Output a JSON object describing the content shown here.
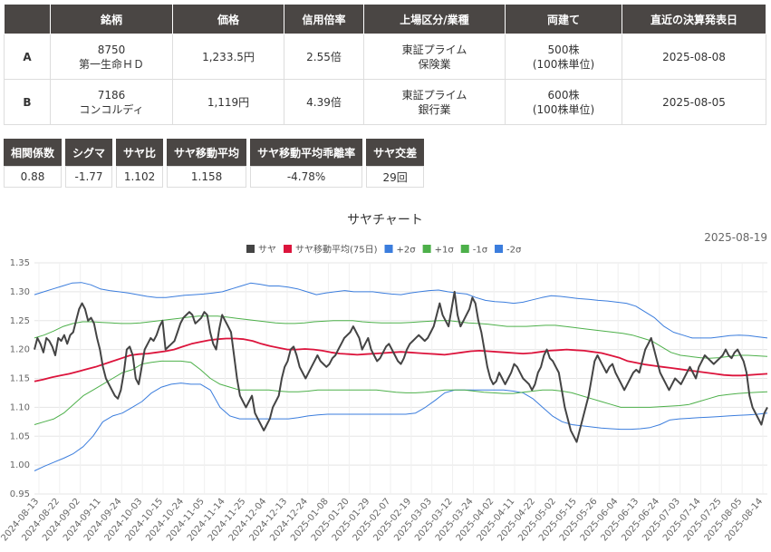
{
  "pair_table": {
    "headers": [
      "",
      "銘柄",
      "価格",
      "信用倍率",
      "上場区分/業種",
      "両建て",
      "直近の決算発表日"
    ],
    "rows": [
      {
        "id": "A",
        "code": "8750",
        "name": "第一生命ＨＤ",
        "price": "1,233.5円",
        "ratio": "2.55倍",
        "market": "東証プライム",
        "industry": "保険業",
        "both": "500株",
        "unit": "(100株単位)",
        "date": "2025-08-08"
      },
      {
        "id": "B",
        "code": "7186",
        "name": "コンコルディ",
        "price": "1,119円",
        "ratio": "4.39倍",
        "market": "東証プライム",
        "industry": "銀行業",
        "both": "600株",
        "unit": "(100株単位)",
        "date": "2025-08-05"
      }
    ]
  },
  "stats": {
    "headers": [
      "相関係数",
      "シグマ",
      "サヤ比",
      "サヤ移動平均",
      "サヤ移動平均乖離率",
      "サヤ交差"
    ],
    "values": [
      "0.88",
      "-1.77",
      "1.102",
      "1.158",
      "-4.78%",
      "29回"
    ]
  },
  "chart_data": {
    "type": "line",
    "title": "サヤチャート",
    "date_label": "2025-08-19",
    "ylim": [
      0.95,
      1.35
    ],
    "yticks": [
      "0.95",
      "1.00",
      "1.05",
      "1.10",
      "1.15",
      "1.20",
      "1.25",
      "1.30",
      "1.35"
    ],
    "xticks": [
      "2024-08-13",
      "2024-08-22",
      "2024-09-02",
      "2024-09-11",
      "2024-09-24",
      "2024-10-03",
      "2024-10-15",
      "2024-10-24",
      "2024-11-05",
      "2024-11-14",
      "2024-11-25",
      "2024-12-04",
      "2024-12-13",
      "2024-12-24",
      "2025-01-08",
      "2025-01-20",
      "2025-01-29",
      "2025-02-07",
      "2025-02-19",
      "2025-03-03",
      "2025-03-12",
      "2025-03-24",
      "2025-04-02",
      "2025-04-11",
      "2025-04-22",
      "2025-05-02",
      "2025-05-15",
      "2025-05-26",
      "2025-06-04",
      "2025-06-13",
      "2025-06-24",
      "2025-07-03",
      "2025-07-14",
      "2025-07-25",
      "2025-08-05",
      "2025-08-14"
    ],
    "series": [
      {
        "name": "サヤ",
        "color": "#444444",
        "values": [
          1.2,
          1.22,
          1.21,
          1.195,
          1.22,
          1.215,
          1.205,
          1.19,
          1.22,
          1.215,
          1.225,
          1.21,
          1.225,
          1.23,
          1.25,
          1.27,
          1.28,
          1.27,
          1.25,
          1.255,
          1.245,
          1.22,
          1.2,
          1.17,
          1.15,
          1.14,
          1.13,
          1.12,
          1.115,
          1.13,
          1.16,
          1.2,
          1.205,
          1.19,
          1.15,
          1.14,
          1.17,
          1.2,
          1.21,
          1.22,
          1.215,
          1.225,
          1.24,
          1.25,
          1.2,
          1.205,
          1.21,
          1.215,
          1.23,
          1.245,
          1.255,
          1.26,
          1.265,
          1.26,
          1.245,
          1.25,
          1.255,
          1.265,
          1.26,
          1.23,
          1.21,
          1.2,
          1.235,
          1.26,
          1.25,
          1.24,
          1.23,
          1.19,
          1.15,
          1.12,
          1.11,
          1.1,
          1.11,
          1.12,
          1.09,
          1.08,
          1.07,
          1.06,
          1.07,
          1.08,
          1.1,
          1.11,
          1.12,
          1.15,
          1.17,
          1.18,
          1.2,
          1.205,
          1.19,
          1.17,
          1.16,
          1.15,
          1.16,
          1.17,
          1.18,
          1.19,
          1.18,
          1.175,
          1.17,
          1.175,
          1.185,
          1.19,
          1.2,
          1.21,
          1.22,
          1.225,
          1.23,
          1.24,
          1.23,
          1.22,
          1.2,
          1.21,
          1.22,
          1.2,
          1.19,
          1.18,
          1.185,
          1.195,
          1.205,
          1.21,
          1.2,
          1.19,
          1.18,
          1.175,
          1.185,
          1.2,
          1.21,
          1.215,
          1.22,
          1.225,
          1.22,
          1.215,
          1.22,
          1.23,
          1.24,
          1.26,
          1.28,
          1.26,
          1.25,
          1.24,
          1.27,
          1.3,
          1.26,
          1.24,
          1.25,
          1.26,
          1.27,
          1.29,
          1.28,
          1.25,
          1.23,
          1.2,
          1.17,
          1.15,
          1.14,
          1.145,
          1.16,
          1.15,
          1.14,
          1.15,
          1.16,
          1.175,
          1.17,
          1.16,
          1.15,
          1.145,
          1.14,
          1.13,
          1.14,
          1.16,
          1.17,
          1.19,
          1.2,
          1.185,
          1.18,
          1.17,
          1.16,
          1.13,
          1.1,
          1.08,
          1.06,
          1.05,
          1.04,
          1.06,
          1.08,
          1.1,
          1.12,
          1.15,
          1.18,
          1.19,
          1.18,
          1.17,
          1.16,
          1.17,
          1.175,
          1.16,
          1.15,
          1.14,
          1.13,
          1.14,
          1.15,
          1.16,
          1.165,
          1.16,
          1.18,
          1.2,
          1.21,
          1.22,
          1.2,
          1.18,
          1.16,
          1.15,
          1.14,
          1.13,
          1.14,
          1.15,
          1.145,
          1.14,
          1.15,
          1.16,
          1.17,
          1.16,
          1.15,
          1.17,
          1.18,
          1.19,
          1.185,
          1.18,
          1.175,
          1.18,
          1.185,
          1.19,
          1.2,
          1.19,
          1.185,
          1.195,
          1.2,
          1.19,
          1.18,
          1.16,
          1.12,
          1.1,
          1.09,
          1.08,
          1.07,
          1.09,
          1.1
        ]
      },
      {
        "name": "サヤ移動平均(75日)",
        "color": "#dc143c",
        "values": [
          1.145,
          1.148,
          1.152,
          1.155,
          1.158,
          1.162,
          1.166,
          1.17,
          1.175,
          1.18,
          1.185,
          1.19,
          1.192,
          1.193,
          1.195,
          1.197,
          1.2,
          1.205,
          1.21,
          1.213,
          1.216,
          1.218,
          1.219,
          1.219,
          1.218,
          1.215,
          1.21,
          1.206,
          1.203,
          1.2,
          1.2,
          1.201,
          1.2,
          1.198,
          1.195,
          1.193,
          1.192,
          1.191,
          1.192,
          1.193,
          1.194,
          1.195,
          1.196,
          1.195,
          1.194,
          1.193,
          1.192,
          1.191,
          1.193,
          1.195,
          1.197,
          1.198,
          1.197,
          1.196,
          1.195,
          1.194,
          1.193,
          1.194,
          1.196,
          1.198,
          1.199,
          1.2,
          1.199,
          1.198,
          1.196,
          1.194,
          1.19,
          1.186,
          1.18,
          1.177,
          1.174,
          1.172,
          1.17,
          1.168,
          1.166,
          1.164,
          1.162,
          1.16,
          1.158,
          1.156,
          1.155,
          1.155,
          1.156,
          1.157,
          1.158
        ]
      },
      {
        "name": "+2σ",
        "color": "#3b7ddd",
        "values": [
          1.295,
          1.3,
          1.305,
          1.31,
          1.315,
          1.316,
          1.312,
          1.305,
          1.302,
          1.3,
          1.298,
          1.295,
          1.292,
          1.29,
          1.29,
          1.292,
          1.294,
          1.295,
          1.296,
          1.298,
          1.3,
          1.305,
          1.31,
          1.315,
          1.313,
          1.31,
          1.31,
          1.308,
          1.305,
          1.3,
          1.295,
          1.298,
          1.3,
          1.302,
          1.3,
          1.3,
          1.3,
          1.298,
          1.296,
          1.295,
          1.298,
          1.3,
          1.302,
          1.303,
          1.3,
          1.298,
          1.296,
          1.29,
          1.285,
          1.283,
          1.282,
          1.28,
          1.282,
          1.286,
          1.29,
          1.293,
          1.292,
          1.29,
          1.288,
          1.287,
          1.285,
          1.284,
          1.282,
          1.28,
          1.275,
          1.265,
          1.255,
          1.24,
          1.23,
          1.225,
          1.22,
          1.22,
          1.22,
          1.222,
          1.224,
          1.225,
          1.224,
          1.222,
          1.22
        ]
      },
      {
        "name": "+1σ",
        "color": "#4db04a",
        "values": [
          1.22,
          1.225,
          1.232,
          1.24,
          1.245,
          1.248,
          1.248,
          1.247,
          1.246,
          1.245,
          1.245,
          1.246,
          1.248,
          1.25,
          1.252,
          1.254,
          1.256,
          1.258,
          1.258,
          1.258,
          1.256,
          1.254,
          1.252,
          1.25,
          1.248,
          1.246,
          1.245,
          1.245,
          1.246,
          1.248,
          1.249,
          1.25,
          1.25,
          1.25,
          1.248,
          1.247,
          1.246,
          1.246,
          1.246,
          1.247,
          1.248,
          1.249,
          1.25,
          1.25,
          1.248,
          1.246,
          1.245,
          1.244,
          1.242,
          1.24,
          1.24,
          1.24,
          1.241,
          1.242,
          1.242,
          1.24,
          1.238,
          1.236,
          1.234,
          1.232,
          1.23,
          1.228,
          1.225,
          1.22,
          1.215,
          1.205,
          1.195,
          1.19,
          1.188,
          1.186,
          1.185,
          1.186,
          1.188,
          1.19,
          1.19,
          1.189,
          1.188
        ]
      },
      {
        "name": "-1σ",
        "color": "#4db04a",
        "values": [
          1.07,
          1.075,
          1.08,
          1.09,
          1.105,
          1.12,
          1.13,
          1.14,
          1.15,
          1.16,
          1.165,
          1.175,
          1.178,
          1.18,
          1.18,
          1.18,
          1.178,
          1.165,
          1.15,
          1.14,
          1.135,
          1.13,
          1.13,
          1.13,
          1.13,
          1.128,
          1.127,
          1.127,
          1.128,
          1.13,
          1.13,
          1.13,
          1.13,
          1.13,
          1.13,
          1.13,
          1.128,
          1.126,
          1.125,
          1.125,
          1.126,
          1.128,
          1.13,
          1.13,
          1.13,
          1.128,
          1.126,
          1.125,
          1.124,
          1.124,
          1.126,
          1.128,
          1.13,
          1.13,
          1.128,
          1.125,
          1.12,
          1.115,
          1.11,
          1.105,
          1.1,
          1.1,
          1.1,
          1.1,
          1.101,
          1.102,
          1.103,
          1.105,
          1.11,
          1.115,
          1.12,
          1.122,
          1.124,
          1.125,
          1.126,
          1.127
        ]
      },
      {
        "name": "-2σ",
        "color": "#3b7ddd",
        "values": [
          0.99,
          0.998,
          1.005,
          1.012,
          1.02,
          1.032,
          1.05,
          1.075,
          1.085,
          1.09,
          1.1,
          1.11,
          1.125,
          1.135,
          1.14,
          1.142,
          1.14,
          1.14,
          1.13,
          1.1,
          1.085,
          1.08,
          1.08,
          1.08,
          1.08,
          1.08,
          1.08,
          1.082,
          1.085,
          1.087,
          1.088,
          1.088,
          1.088,
          1.088,
          1.088,
          1.088,
          1.088,
          1.088,
          1.088,
          1.09,
          1.1,
          1.112,
          1.125,
          1.13,
          1.13,
          1.13,
          1.13,
          1.13,
          1.13,
          1.128,
          1.125,
          1.115,
          1.1,
          1.085,
          1.075,
          1.07,
          1.068,
          1.066,
          1.064,
          1.063,
          1.062,
          1.062,
          1.063,
          1.065,
          1.07,
          1.078,
          1.08,
          1.081,
          1.082,
          1.083,
          1.084,
          1.085,
          1.086,
          1.087,
          1.088,
          1.09
        ]
      }
    ]
  }
}
